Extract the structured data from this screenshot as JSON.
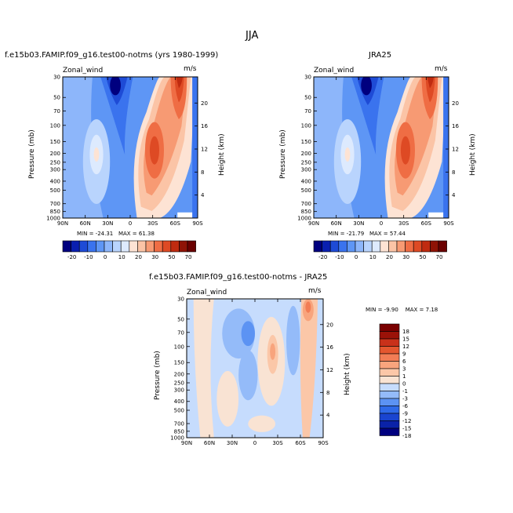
{
  "figure": {
    "title": "JJA"
  },
  "colors": {
    "neg_scale": [
      "#00007f",
      "#0a1fb0",
      "#1e4bd6",
      "#3a73ee",
      "#5e96f5",
      "#8db6fa",
      "#b9d4fd",
      "#ddeafe"
    ],
    "pos_scale": [
      "#fde3d4",
      "#fbc4a6",
      "#f79a73",
      "#ef6d44",
      "#de4a24",
      "#c02b10",
      "#8f1306",
      "#6b0000"
    ],
    "diff_scale": [
      "#00007f",
      "#0a22a8",
      "#1a45d0",
      "#2f6ae8",
      "#5c93f3",
      "#94bbf9",
      "#c6dcfd",
      "#f9e3d3",
      "#fbc7a8",
      "#f8a47d",
      "#f27d55",
      "#e4572f",
      "#c9311a",
      "#9b1208",
      "#7a0000"
    ]
  },
  "chart_data": [
    {
      "type": "heatmap",
      "panel": "left",
      "title": "f.e15b03.FAMIP.f09_g16.test00-notms (yrs 1980-1999)",
      "variable": "Zonal_wind",
      "units": "m/s",
      "ylabel": "Pressure (mb)",
      "ylabel_right": "Height (km)",
      "x_ticks": [
        "90N",
        "60N",
        "30N",
        "0",
        "30S",
        "60S",
        "90S"
      ],
      "y_ticks": [
        "30",
        "50",
        "70",
        "100",
        "150",
        "200",
        "250",
        "300",
        "400",
        "500",
        "700",
        "850",
        "1000"
      ],
      "y_ticks_right": [
        "20",
        "16",
        "12",
        "8",
        "4"
      ],
      "stats": {
        "min_label": "MIN =",
        "min": "-24.31",
        "max_label": "MAX =",
        "max": "61.38"
      },
      "colorbar_labels": [
        "-20",
        "-10",
        "0",
        "10",
        "20",
        "30",
        "50",
        "70"
      ]
    },
    {
      "type": "heatmap",
      "panel": "right",
      "title": "JRA25",
      "variable": "Zonal_wind",
      "units": "m/s",
      "ylabel": "Pressure (mb)",
      "ylabel_right": "Height (km)",
      "x_ticks": [
        "90N",
        "60N",
        "30N",
        "0",
        "30S",
        "60S",
        "90S"
      ],
      "y_ticks": [
        "30",
        "50",
        "70",
        "100",
        "150",
        "200",
        "250",
        "300",
        "400",
        "500",
        "700",
        "850",
        "1000"
      ],
      "y_ticks_right": [
        "20",
        "16",
        "12",
        "8",
        "4"
      ],
      "stats": {
        "min_label": "MIN =",
        "min": "-21.79",
        "max_label": "MAX =",
        "max": "57.44"
      },
      "colorbar_labels": [
        "-20",
        "-10",
        "0",
        "10",
        "20",
        "30",
        "50",
        "70"
      ]
    },
    {
      "type": "heatmap",
      "panel": "difference",
      "title": "f.e15b03.FAMIP.f09_g16.test00-notms - JRA25",
      "variable": "Zonal_wind",
      "units": "m/s",
      "ylabel": "Pressure (mb)",
      "ylabel_right": "Height (km)",
      "x_ticks": [
        "90N",
        "60N",
        "30N",
        "0",
        "30S",
        "60S",
        "90S"
      ],
      "y_ticks": [
        "30",
        "50",
        "70",
        "100",
        "150",
        "200",
        "250",
        "300",
        "400",
        "500",
        "700",
        "850",
        "1000"
      ],
      "y_ticks_right": [
        "20",
        "16",
        "12",
        "8",
        "4"
      ],
      "stats": {
        "min_label": "MIN =",
        "min": "-9.90",
        "max_label": "MAX =",
        "max": "7.18"
      },
      "colorbar_labels": [
        "18",
        "15",
        "12",
        "9",
        "6",
        "3",
        "1",
        "0",
        "-1",
        "-3",
        "-6",
        "-9",
        "-12",
        "-15",
        "-18"
      ]
    }
  ]
}
